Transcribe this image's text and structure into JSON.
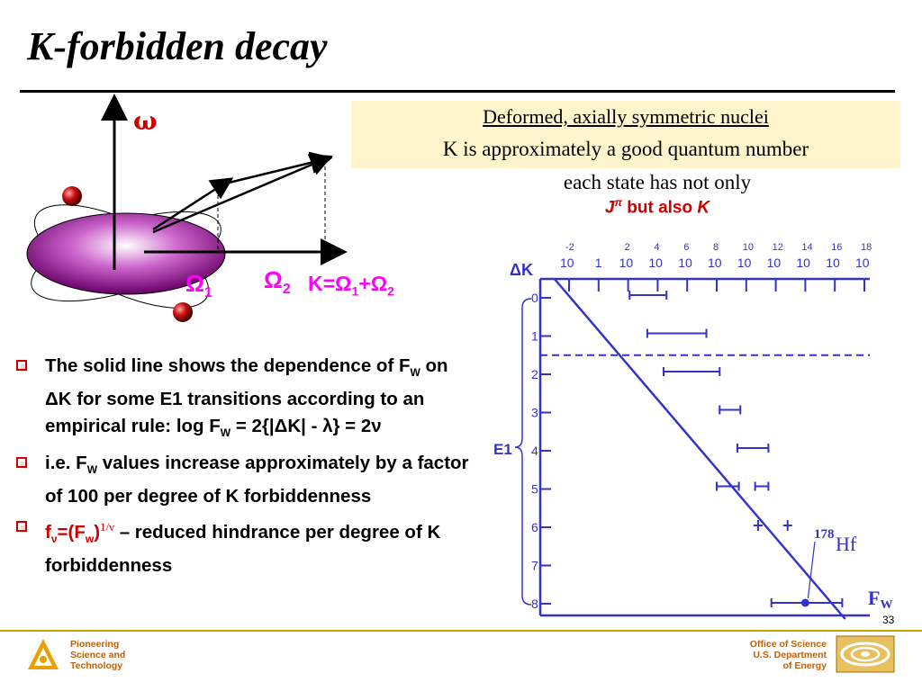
{
  "title": "K-forbidden decay",
  "box": {
    "line1": "Deformed, axially symmetric nuclei",
    "line2": "K is approximately a good quantum number"
  },
  "state_text": "each state has not only",
  "jpi_text": {
    "j": "J",
    "pi": "π",
    "middle": " but also ",
    "k": "K"
  },
  "diagram": {
    "omega": "ω",
    "omega1": "Ω",
    "omega1_sub": "1",
    "omega2": "Ω",
    "omega2_sub": "2",
    "k_eq": "K=Ω",
    "k_eq_sub1": "1",
    "k_eq_plus": "+Ω",
    "k_eq_sub2": "2"
  },
  "bullets": [
    {
      "p1": "The solid line shows the dependence of F",
      "s1": "W",
      "p2": " on ΔK for some E1 transitions according to an empirical rule:  log F",
      "s2": "W",
      "p3": " = 2{|ΔK| - λ}  = 2ν"
    },
    {
      "p1": "i.e. F",
      "s1": "W",
      "p2": " values increase approximately by a factor of 100 per degree of K forbiddenness"
    },
    {
      "r1": "f",
      "rs1": "ν",
      "r2": "=(F",
      "rs2": "w",
      "r3": ")",
      "rsup": "1/ν",
      "p1": " – reduced hindrance per degree of K forbiddenness"
    }
  ],
  "chart_data": {
    "type": "scatter",
    "x_ticks_base": "10",
    "x_ticks_exp": [
      "-2",
      "",
      "2",
      "4",
      "6",
      "8",
      "10",
      "12",
      "14",
      "16",
      "18"
    ],
    "x_ticks_plain": [
      "",
      "1",
      "",
      "",
      "",
      "",
      "",
      "",
      "",
      "",
      ""
    ],
    "y_label": "ΔK",
    "y_ticks": [
      "0",
      "1",
      "2",
      "3",
      "4",
      "5",
      "6",
      "7",
      "8"
    ],
    "group_label": "E1",
    "line": {
      "x_exp": [
        -3,
        16.7
      ],
      "y": [
        -0.5,
        8.4
      ]
    },
    "dashed_y": 1.5,
    "ranges": [
      {
        "dk": 0,
        "lo": 2.1,
        "hi": 4.6
      },
      {
        "dk": 1,
        "lo": 3.3,
        "hi": 7.3
      },
      {
        "dk": 2,
        "lo": 4.4,
        "hi": 8.2
      },
      {
        "dk": 3,
        "lo": 8.2,
        "hi": 9.6
      },
      {
        "dk": 4,
        "lo": 9.4,
        "hi": 11.5
      },
      {
        "dk": 5,
        "lo": 8.0,
        "hi": 9.5
      },
      {
        "dk": 5,
        "lo": 10.6,
        "hi": 11.5
      }
    ],
    "crosses": [
      {
        "dk": 6,
        "x": 10.8
      },
      {
        "dk": 6,
        "x": 12.8
      }
    ],
    "point": {
      "dk": 8,
      "lo": 11.7,
      "hi": 16.5,
      "x": 14.0
    },
    "hf_mass": "178",
    "hf_symbol": "Hf",
    "fw_label": "F",
    "fw_sub": "W"
  },
  "footer": {
    "left": [
      "Pioneering",
      "Science and",
      "Technology"
    ],
    "right": [
      "Office of Science",
      "U.S. Department",
      "of Energy"
    ],
    "page": "33"
  },
  "colors": {
    "chart": "#3333cc",
    "accent_red": "#cc0000",
    "magenta": "#ff00ff",
    "footer_gold": "#c8a000"
  }
}
